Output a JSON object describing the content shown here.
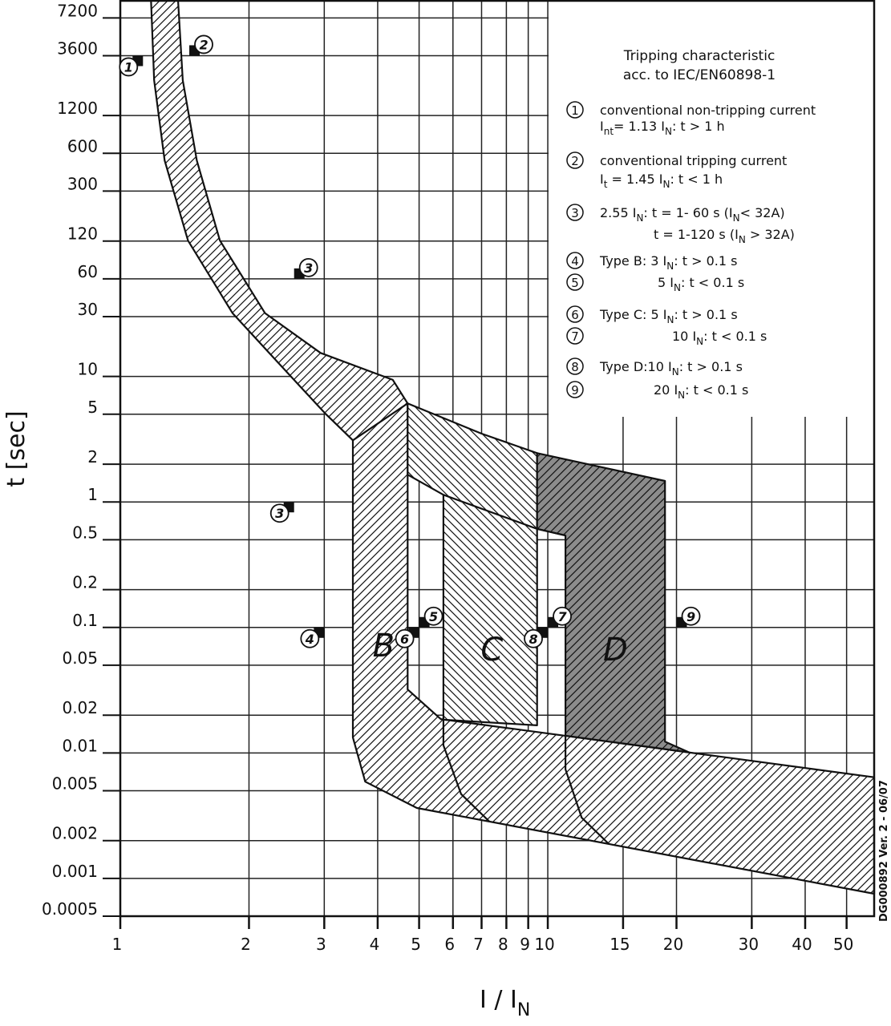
{
  "chart_data": {
    "type": "area",
    "xscale": "log",
    "yscale": "log",
    "grid": true,
    "y_label": "t [sec]",
    "x_label": [
      "I / I",
      "N"
    ],
    "xlim": [
      1,
      58
    ],
    "ylim": [
      0.0005,
      10000
    ],
    "xticks": [
      1,
      2,
      3,
      4,
      5,
      6,
      7,
      8,
      9,
      10,
      15,
      20,
      30,
      40,
      50
    ],
    "yticks": [
      0.0005,
      0.001,
      0.002,
      0.005,
      0.01,
      0.02,
      0.05,
      0.1,
      0.2,
      0.5,
      1,
      2,
      5,
      10,
      30,
      60,
      120,
      300,
      600,
      1200,
      3600,
      7200
    ],
    "series": [
      {
        "color": "#ffffff",
        "hatch": "forward",
        "x": [
          1.365,
          1.4,
          1.51,
          1.71,
          2.18,
          2.94,
          4.34,
          4.7,
          4.7,
          3.5,
          3.01,
          2.32,
          1.83,
          1.44,
          1.27,
          1.2,
          1.18
        ],
        "values": [
          10000,
          2290,
          526,
          121,
          32,
          15.4,
          9.4,
          6.1,
          1.65,
          3.1,
          5.1,
          13.3,
          32,
          121,
          526,
          2290,
          10000
        ]
      },
      {
        "color": "#ffffff",
        "hatch": "forward",
        "x": [
          3.5,
          3.5,
          3.74,
          4.94,
          58,
          58,
          5.62,
          4.7,
          4.7
        ],
        "values": [
          3.1,
          0.0133,
          0.0059,
          0.00364,
          0.000755,
          0.0064,
          0.0186,
          0.032,
          6.1
        ]
      },
      {
        "color": "#ffffff",
        "hatch": "backward",
        "x": [
          4.7,
          7.0,
          9.44,
          9.44,
          5.7,
          5.7,
          4.7
        ],
        "values": [
          6.1,
          3.5,
          2.45,
          0.0166,
          0.0184,
          1.14,
          1.65
        ]
      },
      {
        "color": "#8c8c8c",
        "hatch": "forward",
        "x": [
          9.44,
          18.8,
          18.8,
          21.4,
          11,
          11,
          9.44
        ],
        "values": [
          2.45,
          1.47,
          0.0123,
          0.0101,
          0.0137,
          0.54,
          0.61
        ]
      },
      {
        "x": [
          5.7,
          9.44,
          11
        ],
        "values": [
          1.14,
          0.61,
          0.54
        ]
      },
      {
        "x": [
          5.7,
          5.7,
          6.27,
          7.3
        ],
        "values": [
          0.0184,
          0.0115,
          0.0047,
          0.00284
        ]
      },
      {
        "x": [
          11,
          11,
          12,
          13.9
        ],
        "values": [
          0.0137,
          0.0074,
          0.00305,
          0.00188
        ]
      }
    ],
    "markers": [
      {
        "label": "1",
        "x": 1.13,
        "y": 3600,
        "side": "left"
      },
      {
        "label": "2",
        "x": 1.45,
        "y": 3600,
        "side": "right"
      },
      {
        "label": "3",
        "x": 2.55,
        "y": 60,
        "side": "right"
      },
      {
        "label": "3",
        "x": 2.55,
        "y": 1,
        "side": "left"
      },
      {
        "label": "4",
        "x": 3,
        "y": 0.1,
        "side": "left"
      },
      {
        "label": "5",
        "x": 5,
        "y": 0.1,
        "side": "right"
      },
      {
        "label": "6",
        "x": 5,
        "y": 0.1,
        "side": "left"
      },
      {
        "label": "7",
        "x": 10,
        "y": 0.1,
        "side": "right"
      },
      {
        "label": "8",
        "x": 10,
        "y": 0.1,
        "side": "left"
      },
      {
        "label": "9",
        "x": 20,
        "y": 0.1,
        "side": "right"
      }
    ],
    "region_labels": [
      {
        "text": "B",
        "x": 4.13,
        "y": 0.072
      },
      {
        "text": "C",
        "x": 7.4,
        "y": 0.067
      },
      {
        "text": "D",
        "x": 14.4,
        "y": 0.067
      }
    ],
    "legend": {
      "title": [
        "Tripping characteristic",
        "acc. to IEC/EN60898-1"
      ],
      "items": [
        {
          "num": "1",
          "runs": [
            "conventional non-tripping current"
          ]
        },
        {
          "runs": [
            "I",
            "nt",
            "= 1.13 I",
            "N",
            ": t > 1 h"
          ]
        },
        {
          "num": "2",
          "runs": [
            "conventional tripping current"
          ]
        },
        {
          "runs": [
            "I",
            "t",
            " = 1.45 I",
            "N",
            ": t < 1 h"
          ]
        },
        {
          "num": "3",
          "runs": [
            "2.55 I",
            "N",
            ": t = 1- 60 s (I",
            "N",
            "< 32A)"
          ]
        },
        {
          "runs": [
            "t = 1-120 s (I",
            "N",
            " > 32A)"
          ]
        },
        {
          "num": "4",
          "runs": [
            "Type B: 3 I",
            "N",
            ": t > 0.1 s"
          ]
        },
        {
          "num": "5",
          "runs": [
            "5 I",
            "N",
            ": t < 0.1 s"
          ]
        },
        {
          "num": "6",
          "runs": [
            "Type C: 5 I",
            "N",
            ": t > 0.1 s"
          ]
        },
        {
          "num": "7",
          "runs": [
            "10 I",
            "N",
            ": t < 0.1 s"
          ]
        },
        {
          "num": "8",
          "runs": [
            "Type D:10 I",
            "N",
            ": t > 0.1 s"
          ]
        },
        {
          "num": "9",
          "runs": [
            "20 I",
            "N",
            ": t < 0.1 s"
          ]
        }
      ]
    },
    "footnote": "DG000892 Ver. 2 - 06/07"
  }
}
